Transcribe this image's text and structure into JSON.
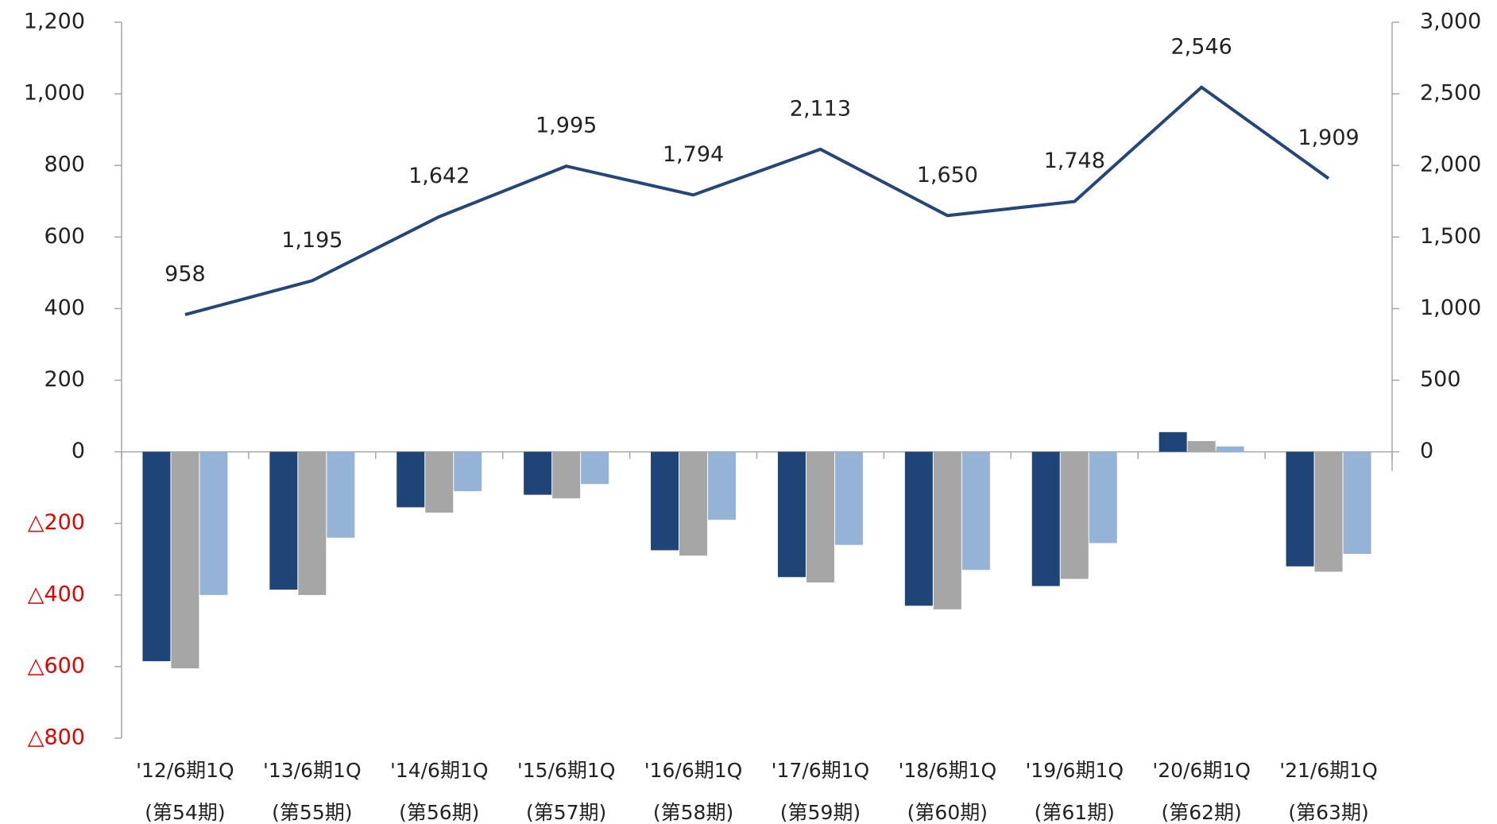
{
  "chart_data": {
    "type": "bar",
    "categories": [
      [
        "'12/6期1Q",
        "(第54期)"
      ],
      [
        "'13/6期1Q",
        "(第55期)"
      ],
      [
        "'14/6期1Q",
        "(第56期)"
      ],
      [
        "'15/6期1Q",
        "(第57期)"
      ],
      [
        "'16/6期1Q",
        "(第58期)"
      ],
      [
        "'17/6期1Q",
        "(第59期)"
      ],
      [
        "'18/6期1Q",
        "(第60期)"
      ],
      [
        "'19/6期1Q",
        "(第61期)"
      ],
      [
        "'20/6期1Q",
        "(第62期)"
      ],
      [
        "'21/6期1Q",
        "(第63期)"
      ]
    ],
    "series": [
      {
        "color": "#1f4478",
        "values": [
          -585,
          -385,
          -155,
          -120,
          -275,
          -350,
          -430,
          -375,
          55,
          -320
        ]
      },
      {
        "color": "#a6a6a6",
        "values": [
          -605,
          -400,
          -170,
          -130,
          -290,
          -365,
          -440,
          -355,
          30,
          -335
        ]
      },
      {
        "color": "#95b3d7",
        "values": [
          -400,
          -240,
          -110,
          -90,
          -190,
          -260,
          -330,
          -255,
          15,
          -285
        ]
      },
      {
        "type": "line",
        "axis": "y2",
        "color": "#254678",
        "values": [
          958,
          1195,
          1642,
          1995,
          1794,
          2113,
          1650,
          1748,
          2546,
          1909
        ],
        "value_labels": [
          "958",
          "1,195",
          "1,642",
          "1,995",
          "1,794",
          "2,113",
          "1,650",
          "1,748",
          "2,546",
          "1,909"
        ]
      }
    ],
    "ylim": [
      -800,
      1200
    ],
    "yticks": [
      {
        "value": -800,
        "label": "△800"
      },
      {
        "value": -600,
        "label": "△600"
      },
      {
        "value": -400,
        "label": "△400"
      },
      {
        "value": -200,
        "label": "△200"
      },
      0,
      200,
      400,
      600,
      800,
      {
        "value": 1000,
        "label": "1,000"
      },
      {
        "value": 1200,
        "label": "1,200"
      }
    ],
    "y2lim": [
      -2000,
      3000
    ],
    "y2ticks": [
      0,
      500,
      {
        "value": 1000,
        "label": "1,000"
      },
      {
        "value": 1500,
        "label": "1,500"
      },
      {
        "value": 2000,
        "label": "2,000"
      },
      {
        "value": 2500,
        "label": "2,500"
      },
      {
        "value": 3000,
        "label": "3,000"
      }
    ]
  }
}
